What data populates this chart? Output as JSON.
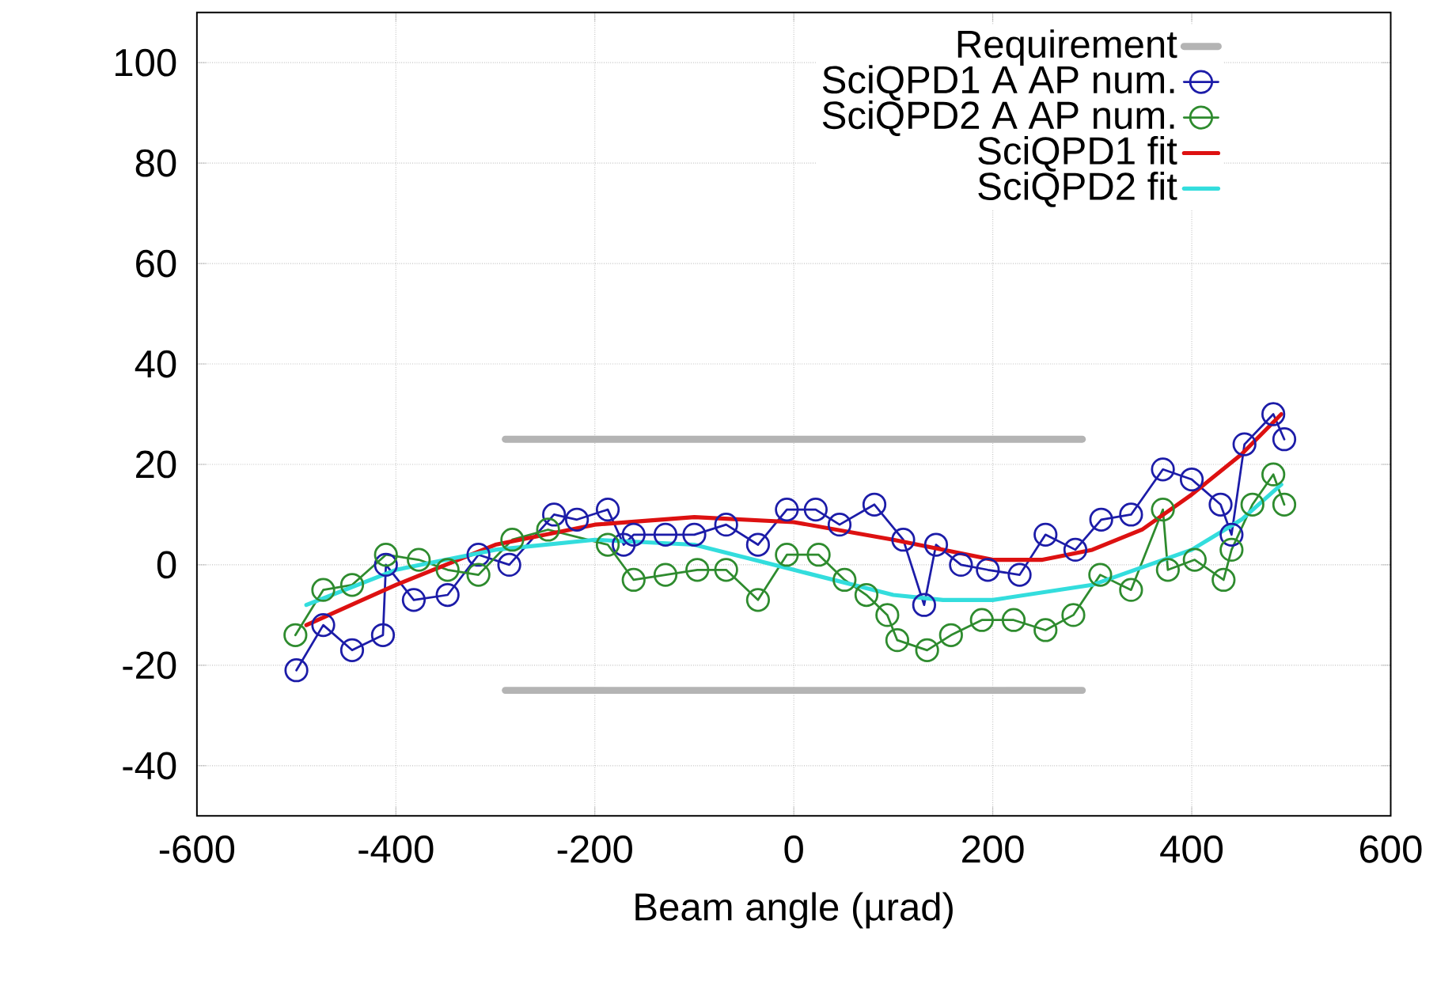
{
  "chart_data": {
    "type": "line",
    "xlabel": "Beam angle (µrad)",
    "xlim": [
      -600,
      600
    ],
    "ylim": [
      -50,
      110
    ],
    "xticks": [
      -600,
      -400,
      -200,
      0,
      200,
      400,
      600
    ],
    "yticks": [
      -40,
      -20,
      0,
      20,
      40,
      60,
      80,
      100
    ],
    "grid": true,
    "legend": "top right",
    "series": [
      {
        "name": "Requirement",
        "color": "#b4b4b4",
        "marker": "none",
        "line_style": "solid",
        "x": [
          -290,
          290
        ],
        "values": [
          25,
          25
        ]
      },
      {
        "color": "#b4b4b4",
        "marker": "none",
        "line_style": "solid",
        "x": [
          -290,
          290
        ],
        "values": [
          -25,
          -25
        ]
      },
      {
        "name": "SciQPD1 A AP num.",
        "color": "#1c1ca8",
        "marker": "circle",
        "line_style": "solid",
        "x": [
          -500,
          -473,
          -444,
          -413,
          -410,
          -382,
          -348,
          -317,
          -286,
          -241,
          -218,
          -187,
          -171,
          -161,
          -129,
          -100,
          -68,
          -36,
          -7,
          22,
          46,
          81,
          110,
          131,
          143,
          168,
          195,
          227,
          253,
          283,
          309,
          339,
          371,
          400,
          429,
          440,
          453,
          482,
          493
        ],
        "values": [
          -21,
          -12,
          -17,
          -14,
          0,
          -7,
          -6,
          2,
          0,
          10,
          9,
          11,
          4,
          6,
          6,
          6,
          8,
          4,
          11,
          11,
          8,
          12,
          5,
          -8,
          4,
          0,
          -1,
          -2,
          6,
          3,
          9,
          10,
          19,
          17,
          12,
          6,
          24,
          30,
          25
        ]
      },
      {
        "name": "SciQPD2 A AP num.",
        "color": "#2e8b2e",
        "marker": "circle",
        "line_style": "solid",
        "x": [
          -501,
          -473,
          -444,
          -410,
          -377,
          -348,
          -317,
          -283,
          -247,
          -187,
          -161,
          -129,
          -97,
          -68,
          -36,
          -7,
          25,
          51,
          73,
          94,
          104,
          134,
          158,
          189,
          221,
          253,
          281,
          308,
          339,
          371,
          376,
          403,
          432,
          440,
          461,
          482,
          493
        ],
        "values": [
          -14,
          -5,
          -4,
          2,
          1,
          -1,
          -2,
          5,
          7,
          4,
          -3,
          -2,
          -1,
          -1,
          -7,
          2,
          2,
          -3,
          -6,
          -10,
          -15,
          -17,
          -14,
          -11,
          -11,
          -13,
          -10,
          -2,
          -5,
          11,
          -1,
          1,
          -3,
          3,
          12,
          18,
          12
        ]
      },
      {
        "name": "SciQPD1 fit",
        "color": "#dd1111",
        "marker": "none",
        "line_style": "solid",
        "x": [
          -490,
          -400,
          -300,
          -200,
          -100,
          0,
          100,
          200,
          250,
          300,
          350,
          400,
          450,
          490
        ],
        "values": [
          -12,
          -4,
          4,
          8,
          9.5,
          8.5,
          5,
          1,
          1,
          3,
          7,
          14,
          22,
          30
        ]
      },
      {
        "name": "SciQPD2 fit",
        "color": "#33dddd",
        "marker": "none",
        "line_style": "solid",
        "x": [
          -490,
          -400,
          -300,
          -200,
          -100,
          0,
          100,
          150,
          200,
          300,
          400,
          450,
          490
        ],
        "values": [
          -8,
          -1,
          3,
          5,
          4,
          -1,
          -6,
          -7,
          -7,
          -4,
          3,
          9,
          16
        ]
      }
    ]
  }
}
